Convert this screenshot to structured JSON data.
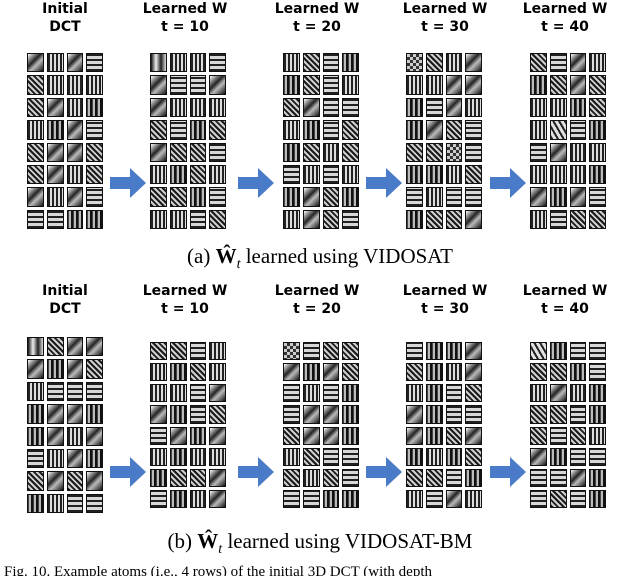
{
  "panel_a": {
    "headers": [
      {
        "line1": "Initial",
        "line2": "DCT"
      },
      {
        "line1": "Learned W",
        "line2": "t = 10"
      },
      {
        "line1": "Learned W",
        "line2": "t = 20"
      },
      {
        "line1": "Learned W",
        "line2": "t = 30"
      },
      {
        "line1": "Learned W",
        "line2": "t = 40"
      }
    ],
    "caption_prefix": "(a)",
    "caption_symbol": "Ŵ",
    "caption_sub": "t",
    "caption_suffix": "learned using VIDOSAT"
  },
  "panel_b": {
    "headers": [
      {
        "line1": "Initial",
        "line2": "DCT"
      },
      {
        "line1": "Learned W",
        "line2": "t = 10"
      },
      {
        "line1": "Learned W",
        "line2": "t = 20"
      },
      {
        "line1": "Learned W",
        "line2": "t = 30"
      },
      {
        "line1": "Learned W",
        "line2": "t = 40"
      }
    ],
    "caption_prefix": "(b)",
    "caption_symbol": "Ŵ",
    "caption_sub": "t",
    "caption_suffix": "learned using VIDOSAT-BM"
  },
  "figure_caption": "Fig. 10.   Example atoms (i.e., 4 rows) of the initial 3D DCT (with depth",
  "colors": {
    "arrow": "#4a7bc8",
    "background": "#ffffff"
  }
}
